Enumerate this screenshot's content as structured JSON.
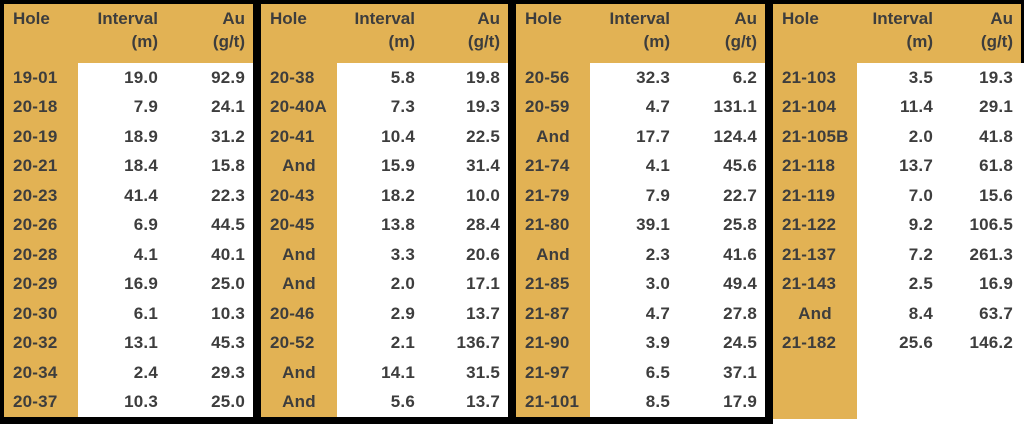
{
  "colors": {
    "gold": "#e2b254",
    "text": "#3d3d3d",
    "frame": "#000000",
    "cell_background": "#ffffff"
  },
  "header": {
    "hole": "Hole",
    "interval_line1": "Interval",
    "interval_line2": "(m)",
    "au_line1": "Au",
    "au_line2": "(g/t)"
  },
  "layout": {
    "rows_per_group": 12
  },
  "chart_data": {
    "type": "table",
    "columns": [
      "Hole",
      "Interval (m)",
      "Au (g/t)"
    ],
    "groups": [
      {
        "rows": [
          [
            "19-01",
            "19.0",
            "92.9"
          ],
          [
            "20-18",
            "7.9",
            "24.1"
          ],
          [
            "20-19",
            "18.9",
            "31.2"
          ],
          [
            "20-21",
            "18.4",
            "15.8"
          ],
          [
            "20-23",
            "41.4",
            "22.3"
          ],
          [
            "20-26",
            "6.9",
            "44.5"
          ],
          [
            "20-28",
            "4.1",
            "40.1"
          ],
          [
            "20-29",
            "16.9",
            "25.0"
          ],
          [
            "20-30",
            "6.1",
            "10.3"
          ],
          [
            "20-32",
            "13.1",
            "45.3"
          ],
          [
            "20-34",
            "2.4",
            "29.3"
          ],
          [
            "20-37",
            "10.3",
            "25.0"
          ]
        ]
      },
      {
        "rows": [
          [
            "20-38",
            "5.8",
            "19.8"
          ],
          [
            "20-40A",
            "7.3",
            "19.3"
          ],
          [
            "20-41",
            "10.4",
            "22.5"
          ],
          [
            "And",
            "15.9",
            "31.4"
          ],
          [
            "20-43",
            "18.2",
            "10.0"
          ],
          [
            "20-45",
            "13.8",
            "28.4"
          ],
          [
            "And",
            "3.3",
            "20.6"
          ],
          [
            "And",
            "2.0",
            "17.1"
          ],
          [
            "20-46",
            "2.9",
            "13.7"
          ],
          [
            "20-52",
            "2.1",
            "136.7"
          ],
          [
            "And",
            "14.1",
            "31.5"
          ],
          [
            "And",
            "5.6",
            "13.7"
          ]
        ]
      },
      {
        "rows": [
          [
            "20-56",
            "32.3",
            "6.2"
          ],
          [
            "20-59",
            "4.7",
            "131.1"
          ],
          [
            "And",
            "17.7",
            "124.4"
          ],
          [
            "21-74",
            "4.1",
            "45.6"
          ],
          [
            "21-79",
            "7.9",
            "22.7"
          ],
          [
            "21-80",
            "39.1",
            "25.8"
          ],
          [
            "And",
            "2.3",
            "41.6"
          ],
          [
            "21-85",
            "3.0",
            "49.4"
          ],
          [
            "21-87",
            "4.7",
            "27.8"
          ],
          [
            "21-90",
            "3.9",
            "24.5"
          ],
          [
            "21-97",
            "6.5",
            "37.1"
          ],
          [
            "21-101",
            "8.5",
            "17.9"
          ]
        ]
      },
      {
        "rows": [
          [
            "21-103",
            "3.5",
            "19.3"
          ],
          [
            "21-104",
            "11.4",
            "29.1"
          ],
          [
            "21-105B",
            "2.0",
            "41.8"
          ],
          [
            "21-118",
            "13.7",
            "61.8"
          ],
          [
            "21-119",
            "7.0",
            "15.6"
          ],
          [
            "21-122",
            "9.2",
            "106.5"
          ],
          [
            "21-137",
            "7.2",
            "261.3"
          ],
          [
            "21-143",
            "2.5",
            "16.9"
          ],
          [
            "And",
            "8.4",
            "63.7"
          ],
          [
            "21-182",
            "25.6",
            "146.2"
          ]
        ]
      }
    ]
  }
}
